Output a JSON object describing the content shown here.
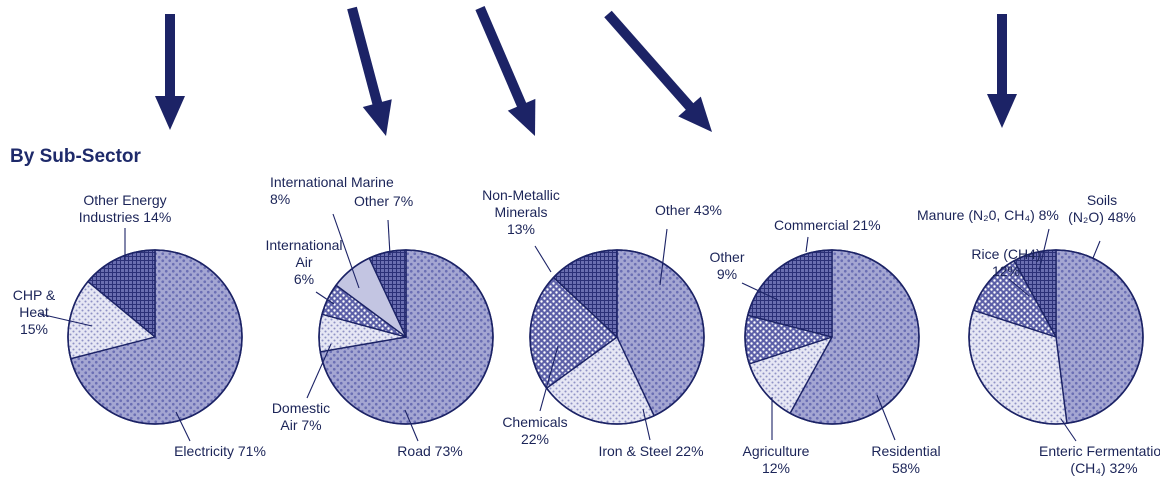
{
  "heading": "By Sub-Sector",
  "colors": {
    "navy": "#1c2366",
    "outline": "#1c2366",
    "pattern_dots_base": "#a4a6d2",
    "pattern_dots_dot": "#6b6fb4",
    "pattern_light_base": "#e6e7f4",
    "pattern_light_dot": "#8f92c6",
    "pattern_check_base": "#5c60a8",
    "pattern_check_dot": "#ffffff",
    "pattern_grid_base": "#6a6eb0",
    "pattern_grid_line": "#2b3077",
    "pattern_solid_light": "#c3c5e2"
  },
  "chart_data": [
    {
      "type": "pie",
      "slices": [
        {
          "label_lines": [
            "Electricity 71%"
          ],
          "value": 71,
          "pattern": "dots"
        },
        {
          "label_lines": [
            "CHP &",
            "Heat",
            "15%"
          ],
          "value": 15,
          "pattern": "light"
        },
        {
          "label_lines": [
            "Other Energy",
            "Industries 14%"
          ],
          "value": 14,
          "pattern": "grid"
        }
      ]
    },
    {
      "type": "pie",
      "slices": [
        {
          "label_lines": [
            "Road 73%"
          ],
          "value": 73,
          "pattern": "dots"
        },
        {
          "label_lines": [
            "Domestic",
            "Air 7%"
          ],
          "value": 7,
          "pattern": "light"
        },
        {
          "label_lines": [
            "International",
            "Air",
            "6%"
          ],
          "value": 6,
          "pattern": "check"
        },
        {
          "label_lines": [
            "International Marine",
            "8%"
          ],
          "value": 8,
          "pattern": "solid_light"
        },
        {
          "label_lines": [
            "Other 7%"
          ],
          "value": 7,
          "pattern": "grid"
        }
      ]
    },
    {
      "type": "pie",
      "slices": [
        {
          "label_lines": [
            "Other 43%"
          ],
          "value": 43,
          "pattern": "dots"
        },
        {
          "label_lines": [
            "Iron & Steel 22%"
          ],
          "value": 22,
          "pattern": "light"
        },
        {
          "label_lines": [
            "Chemicals",
            "22%"
          ],
          "value": 22,
          "pattern": "check"
        },
        {
          "label_lines": [
            "Non-Metallic",
            "Minerals",
            "13%"
          ],
          "value": 13,
          "pattern": "grid"
        }
      ]
    },
    {
      "type": "pie",
      "slices": [
        {
          "label_lines": [
            "Residential",
            "58%"
          ],
          "value": 58,
          "pattern": "dots"
        },
        {
          "label_lines": [
            "Agriculture",
            "12%"
          ],
          "value": 12,
          "pattern": "light"
        },
        {
          "label_lines": [
            "Other",
            "9%"
          ],
          "value": 9,
          "pattern": "check"
        },
        {
          "label_lines": [
            "Commercial  21%"
          ],
          "value": 21,
          "pattern": "grid"
        }
      ]
    },
    {
      "type": "pie",
      "slices": [
        {
          "label_lines": [
            "Soils",
            "(N₂O) 48%"
          ],
          "value": 48,
          "pattern": "dots"
        },
        {
          "label_lines": [
            "Enteric Fermentation",
            "(CH₄) 32%"
          ],
          "value": 32,
          "pattern": "light"
        },
        {
          "label_lines": [
            "Rice (CH4)",
            "12%"
          ],
          "value": 12,
          "pattern": "check"
        },
        {
          "label_lines": [
            "Manure (N₂0, CH₄) 8%"
          ],
          "value": 8,
          "pattern": "grid"
        }
      ]
    }
  ]
}
